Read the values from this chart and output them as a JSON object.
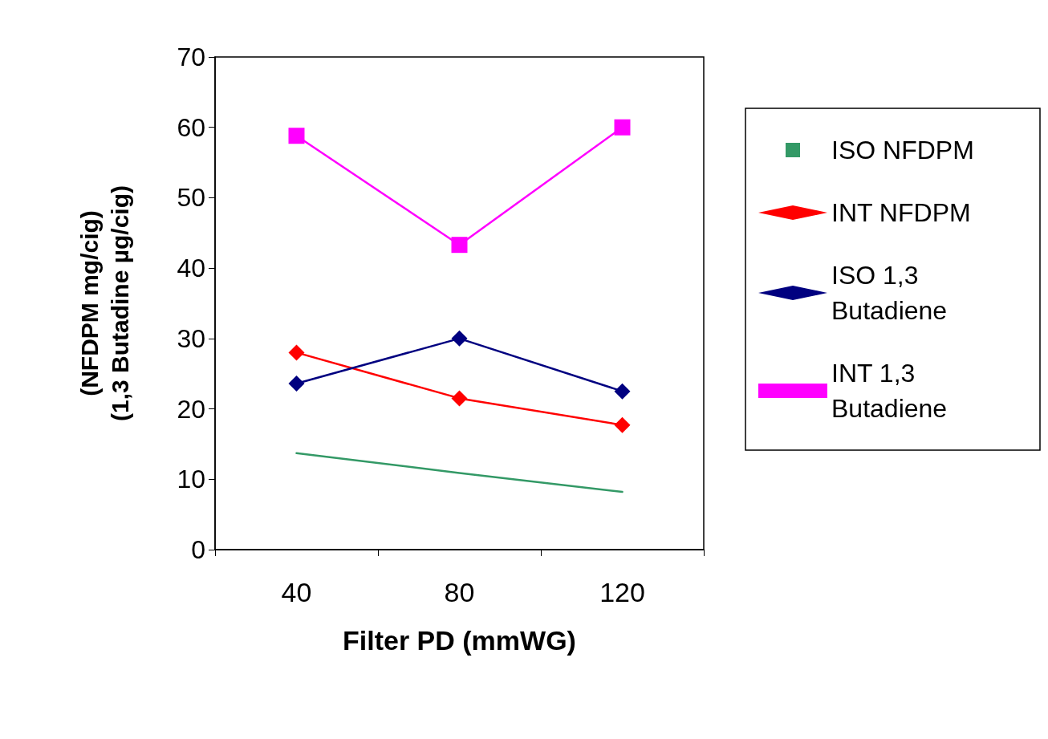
{
  "chart_data": {
    "type": "line",
    "xlabel": "Filter PD (mmWG)",
    "ylabel": "(NFDPM mg/cig)\n(1,3 Butadine µg/cig)",
    "categories": [
      "40",
      "80",
      "120"
    ],
    "series": [
      {
        "name": "ISO NFDPM",
        "color": "#339966",
        "marker": "none",
        "values": [
          13.7,
          10.9,
          8.2
        ]
      },
      {
        "name": "INT NFDPM",
        "color": "#ff0000",
        "marker": "diamond",
        "values": [
          28.0,
          21.5,
          17.7
        ]
      },
      {
        "name": "ISO 1,3 Butadiene",
        "color": "#000080",
        "marker": "diamond",
        "values": [
          23.6,
          30.0,
          22.5
        ]
      },
      {
        "name": "INT 1,3 Butadiene",
        "color": "#ff00ff",
        "marker": "square",
        "values": [
          58.8,
          43.3,
          60.0
        ]
      }
    ],
    "ylim": [
      0,
      70
    ],
    "yticks": [
      0,
      10,
      20,
      30,
      40,
      50,
      60,
      70
    ],
    "grid": false,
    "legend": "right",
    "line_style": "solid"
  }
}
